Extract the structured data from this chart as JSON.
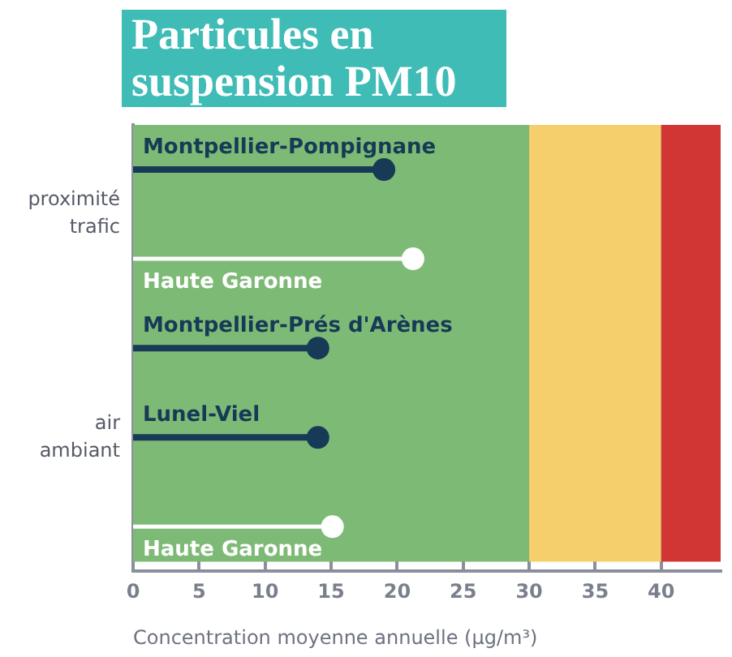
{
  "chart_data": {
    "type": "lollipop",
    "orientation": "horizontal",
    "title": "Particules en suspension PM10",
    "xlabel": "Concentration moyenne annuelle (µg/m³)",
    "categories": [
      "Montpellier-Pompignane",
      "Haute Garonne",
      "Montpellier-Prés d'Arènes",
      "Lunel-Viel",
      "Haute Garonne"
    ],
    "values": [
      19,
      21.2,
      14,
      14,
      15.1
    ],
    "colors": [
      "#173a56",
      "#ffffff",
      "#173a56",
      "#173a56",
      "#ffffff"
    ],
    "marker": "circle",
    "xlim": [
      0,
      44.5
    ],
    "xticks": [
      0,
      5,
      10,
      15,
      20,
      25,
      30,
      35,
      40
    ],
    "bands": [
      {
        "axis": "x",
        "from": 0,
        "to": 30,
        "color": "#7dba76"
      },
      {
        "axis": "x",
        "from": 30,
        "to": 40,
        "color": "#f4cf6b"
      },
      {
        "axis": "x",
        "from": 40,
        "to": 44.5,
        "color": "#d23634"
      }
    ],
    "annotations": [
      "proximité trafic",
      "air ambiant"
    ],
    "grid": "x",
    "tick_labels": "x",
    "legend": false
  }
}
